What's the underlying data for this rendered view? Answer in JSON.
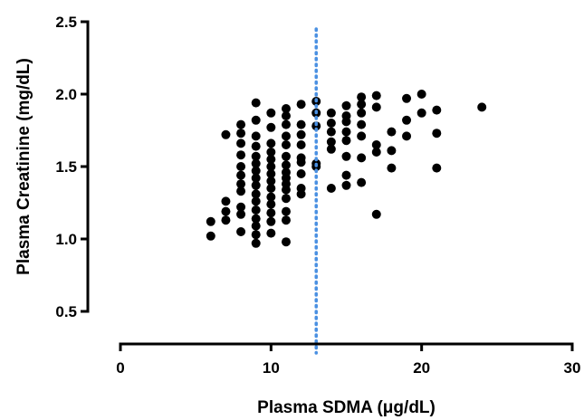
{
  "chart_data": {
    "type": "scatter",
    "xlabel": "Plasma SDMA (μg/dL)",
    "ylabel": "Plasma Creatinine (mg/dL)",
    "xlim": [
      0,
      30
    ],
    "ylim": [
      0.5,
      2.5
    ],
    "x_ticks": [
      "0",
      "10",
      "20",
      "30"
    ],
    "y_ticks": [
      "0.5",
      "1.0",
      "1.5",
      "2.0",
      "2.5"
    ],
    "grid": false,
    "reference_line": {
      "orientation": "vertical",
      "x": 13,
      "style": "dotted",
      "color": "#4a90e2"
    },
    "marker_color": "#000000",
    "points": [
      [
        6,
        1.12
      ],
      [
        6,
        1.02
      ],
      [
        7,
        1.72
      ],
      [
        7,
        1.26
      ],
      [
        7,
        1.19
      ],
      [
        7,
        1.13
      ],
      [
        8,
        1.79
      ],
      [
        8,
        1.73
      ],
      [
        8,
        1.66
      ],
      [
        8,
        1.58
      ],
      [
        8,
        1.5
      ],
      [
        8,
        1.44
      ],
      [
        8,
        1.38
      ],
      [
        8,
        1.33
      ],
      [
        8,
        1.22
      ],
      [
        8,
        1.17
      ],
      [
        8,
        1.05
      ],
      [
        9,
        1.94
      ],
      [
        9,
        1.82
      ],
      [
        9,
        1.71
      ],
      [
        9,
        1.64
      ],
      [
        9,
        1.57
      ],
      [
        9,
        1.52
      ],
      [
        9,
        1.47
      ],
      [
        9,
        1.42
      ],
      [
        9,
        1.37
      ],
      [
        9,
        1.31
      ],
      [
        9,
        1.26
      ],
      [
        9,
        1.2
      ],
      [
        9,
        1.14
      ],
      [
        9,
        1.09
      ],
      [
        9,
        1.03
      ],
      [
        9,
        0.97
      ],
      [
        10,
        1.87
      ],
      [
        10,
        1.77
      ],
      [
        10,
        1.66
      ],
      [
        10,
        1.6
      ],
      [
        10,
        1.55
      ],
      [
        10,
        1.5
      ],
      [
        10,
        1.45
      ],
      [
        10,
        1.4
      ],
      [
        10,
        1.35
      ],
      [
        10,
        1.29
      ],
      [
        10,
        1.24
      ],
      [
        10,
        1.18
      ],
      [
        10,
        1.12
      ],
      [
        10,
        1.04
      ],
      [
        11,
        1.9
      ],
      [
        11,
        1.85
      ],
      [
        11,
        1.79
      ],
      [
        11,
        1.71
      ],
      [
        11,
        1.65
      ],
      [
        11,
        1.57
      ],
      [
        11,
        1.51
      ],
      [
        11,
        1.46
      ],
      [
        11,
        1.42
      ],
      [
        11,
        1.38
      ],
      [
        11,
        1.34
      ],
      [
        11,
        1.28
      ],
      [
        11,
        1.19
      ],
      [
        11,
        1.13
      ],
      [
        11,
        0.98
      ],
      [
        12,
        1.93
      ],
      [
        12,
        1.79
      ],
      [
        12,
        1.72
      ],
      [
        12,
        1.65
      ],
      [
        12,
        1.56
      ],
      [
        12,
        1.53
      ],
      [
        12,
        1.45
      ],
      [
        12,
        1.35
      ],
      [
        12,
        1.31
      ],
      [
        13,
        1.95
      ],
      [
        13,
        1.87
      ],
      [
        13,
        1.78
      ],
      [
        13,
        1.52
      ],
      [
        13,
        1.5
      ],
      [
        14,
        1.87
      ],
      [
        14,
        1.8
      ],
      [
        14,
        1.74
      ],
      [
        14,
        1.67
      ],
      [
        14,
        1.62
      ],
      [
        14,
        1.35
      ],
      [
        15,
        1.92
      ],
      [
        15,
        1.85
      ],
      [
        15,
        1.81
      ],
      [
        15,
        1.74
      ],
      [
        15,
        1.68
      ],
      [
        15,
        1.57
      ],
      [
        15,
        1.44
      ],
      [
        15,
        1.37
      ],
      [
        16,
        1.98
      ],
      [
        16,
        1.93
      ],
      [
        16,
        1.87
      ],
      [
        16,
        1.79
      ],
      [
        16,
        1.71
      ],
      [
        16,
        1.56
      ],
      [
        16,
        1.39
      ],
      [
        17,
        1.99
      ],
      [
        17,
        1.91
      ],
      [
        17,
        1.65
      ],
      [
        17,
        1.6
      ],
      [
        17,
        1.17
      ],
      [
        18,
        1.74
      ],
      [
        18,
        1.61
      ],
      [
        18,
        1.49
      ],
      [
        19,
        1.97
      ],
      [
        19,
        1.82
      ],
      [
        19,
        1.71
      ],
      [
        20,
        2.0
      ],
      [
        20,
        1.87
      ],
      [
        21,
        1.89
      ],
      [
        21,
        1.73
      ],
      [
        21,
        1.49
      ],
      [
        24,
        1.91
      ]
    ]
  }
}
